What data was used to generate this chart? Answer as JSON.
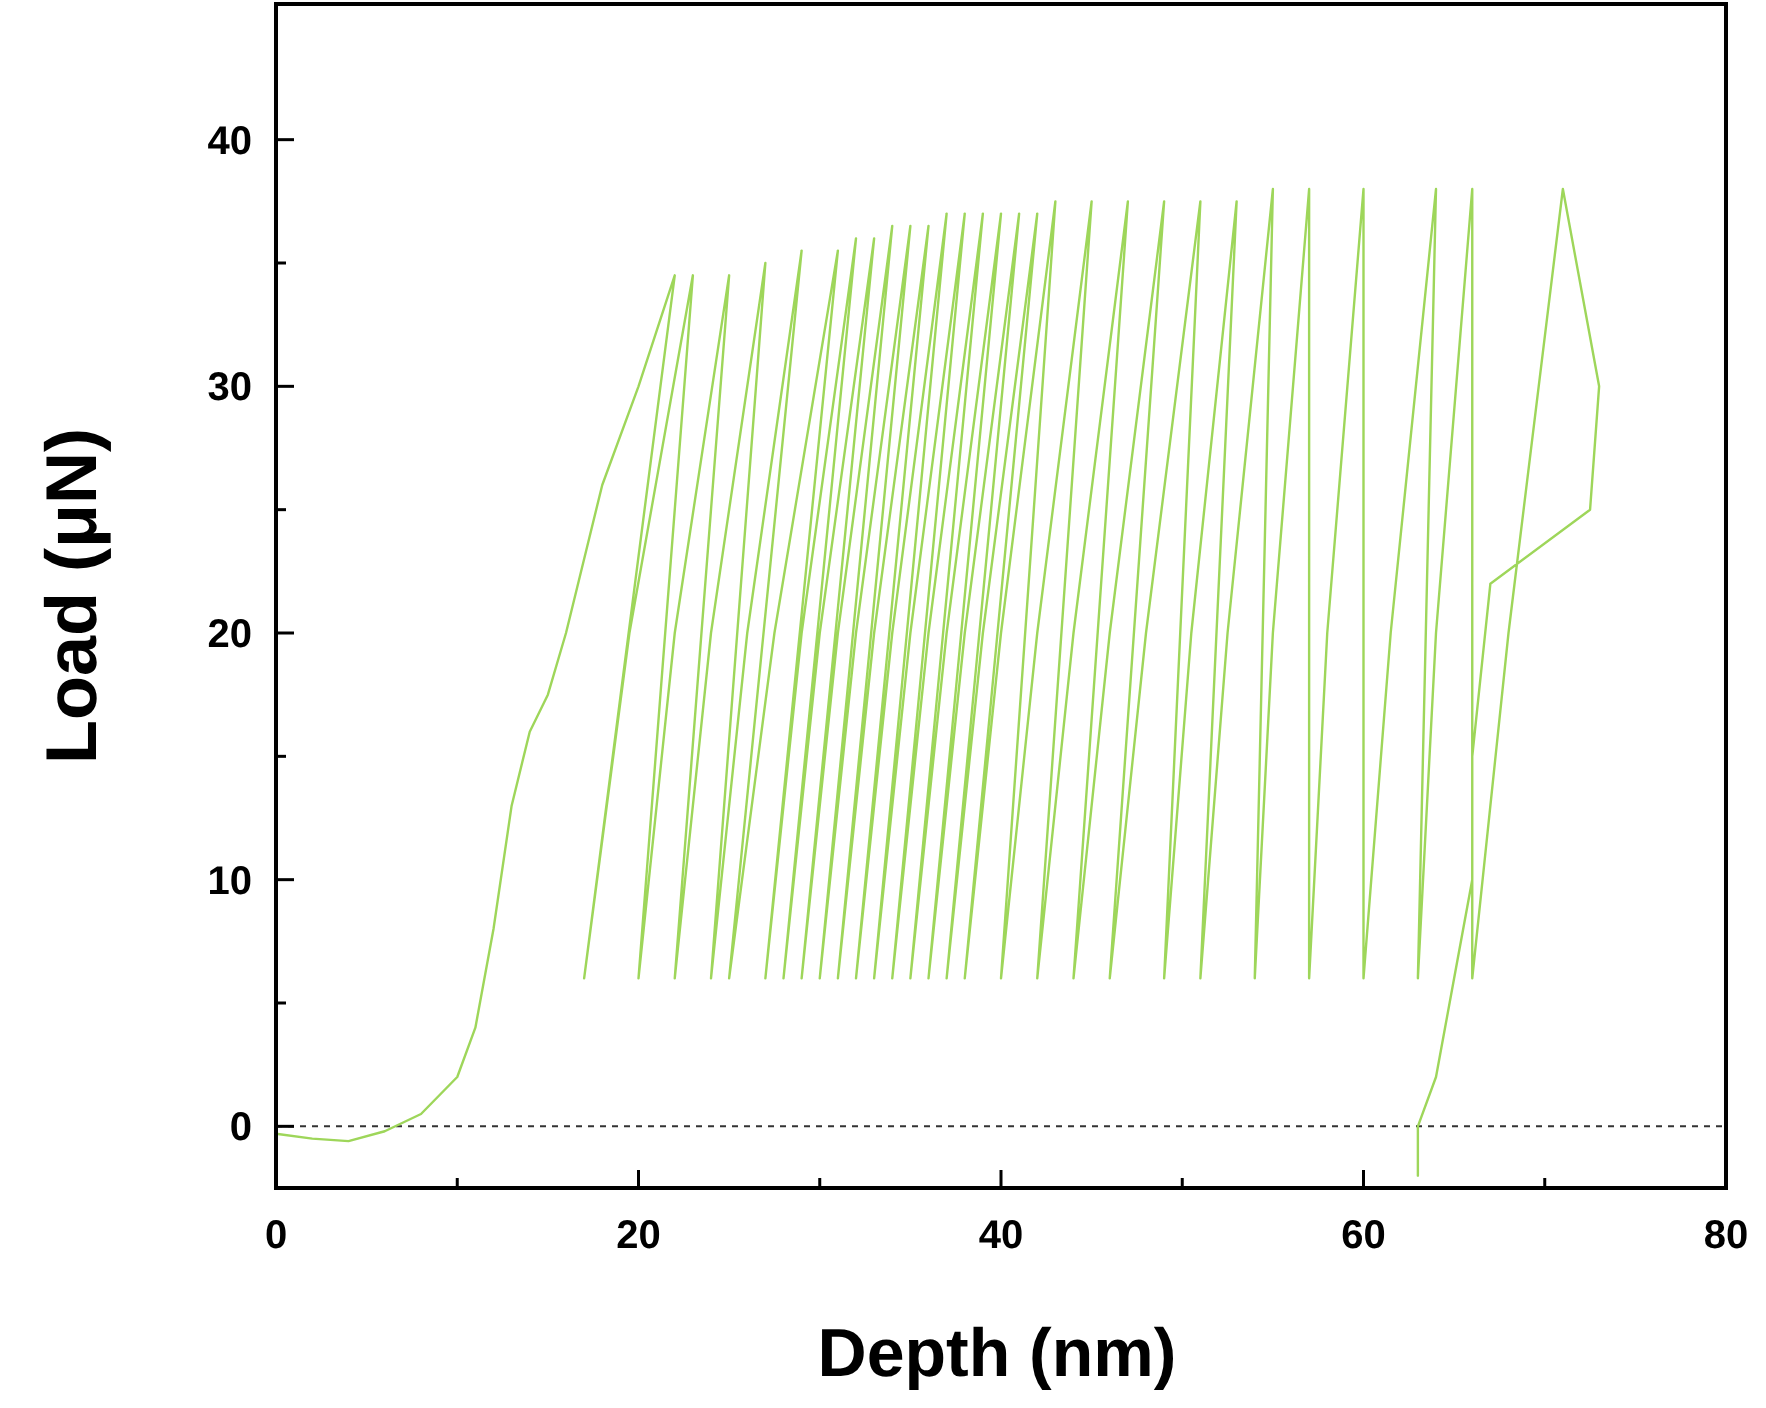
{
  "chart_data": {
    "type": "line",
    "xlabel": "Depth (nm)",
    "ylabel": "Load (μN)",
    "xlim": [
      0,
      80
    ],
    "ylim": [
      -2.5,
      45.5
    ],
    "xticks": [
      0,
      {
        "value": 10,
        "label": null
      },
      20,
      {
        "value": 30,
        "label": null
      },
      40,
      {
        "value": 50,
        "label": null
      },
      60,
      {
        "value": 70,
        "label": null
      },
      80
    ],
    "yticks": [
      0,
      {
        "value": 5,
        "label": null
      },
      10,
      {
        "value": 15,
        "label": null
      },
      20,
      {
        "value": 25,
        "label": null
      },
      30,
      {
        "value": 35,
        "label": null
      },
      40
    ],
    "grid": false,
    "marker": "none",
    "line_style": "solid",
    "ref_lines": [
      {
        "axis": "y",
        "value": 0,
        "line_style": "dotted",
        "color": "#333333"
      }
    ],
    "series": [
      {
        "color": "#9ed65a",
        "x": [
          0,
          2,
          4,
          6,
          8,
          10,
          11,
          12,
          13,
          14,
          15,
          16,
          17,
          18,
          20,
          22,
          17,
          19.5,
          23,
          20,
          22,
          25,
          22,
          24,
          27,
          24,
          26,
          29,
          25,
          27.5,
          31,
          27,
          29,
          32,
          28,
          30,
          33,
          29,
          31,
          34,
          30,
          32,
          35,
          31,
          33,
          36,
          32,
          34,
          37,
          33,
          35,
          38,
          34,
          36,
          39,
          35,
          37,
          40,
          36,
          38,
          41,
          37,
          39,
          42,
          38,
          40,
          43,
          40,
          42,
          45,
          42,
          44,
          47,
          44,
          46,
          49,
          46,
          48,
          51,
          49,
          50.5,
          53,
          51,
          52.5,
          55,
          54,
          55,
          57,
          57,
          58,
          60,
          60,
          61.5,
          64,
          63,
          64,
          66,
          66,
          68,
          71,
          73,
          72.5,
          67,
          66,
          66,
          65,
          64,
          63,
          63
        ],
        "values": [
          -0.3,
          -0.5,
          -0.6,
          -0.2,
          0.5,
          2,
          4,
          8,
          13,
          16,
          17.5,
          20,
          23,
          26,
          30,
          34.5,
          6,
          20,
          34.5,
          6,
          20,
          34.5,
          6,
          20,
          35,
          6,
          20,
          35.5,
          6,
          20,
          35.5,
          6,
          20,
          36,
          6,
          20,
          36,
          6,
          20,
          36.5,
          6,
          20,
          36.5,
          6,
          20,
          36.5,
          6,
          20,
          37,
          6,
          20,
          37,
          6,
          20,
          37,
          6,
          20,
          37,
          6,
          20,
          37,
          6,
          20,
          37,
          6,
          20,
          37.5,
          6,
          20,
          37.5,
          6,
          20,
          37.5,
          6,
          20,
          37.5,
          6,
          20,
          37.5,
          6,
          20,
          37.5,
          6,
          20,
          38,
          6,
          20,
          38,
          6,
          20,
          38,
          6,
          20,
          38,
          6,
          20,
          38,
          6,
          20,
          38,
          30,
          25,
          22,
          15,
          10,
          6,
          2,
          0,
          -2
        ]
      }
    ]
  }
}
